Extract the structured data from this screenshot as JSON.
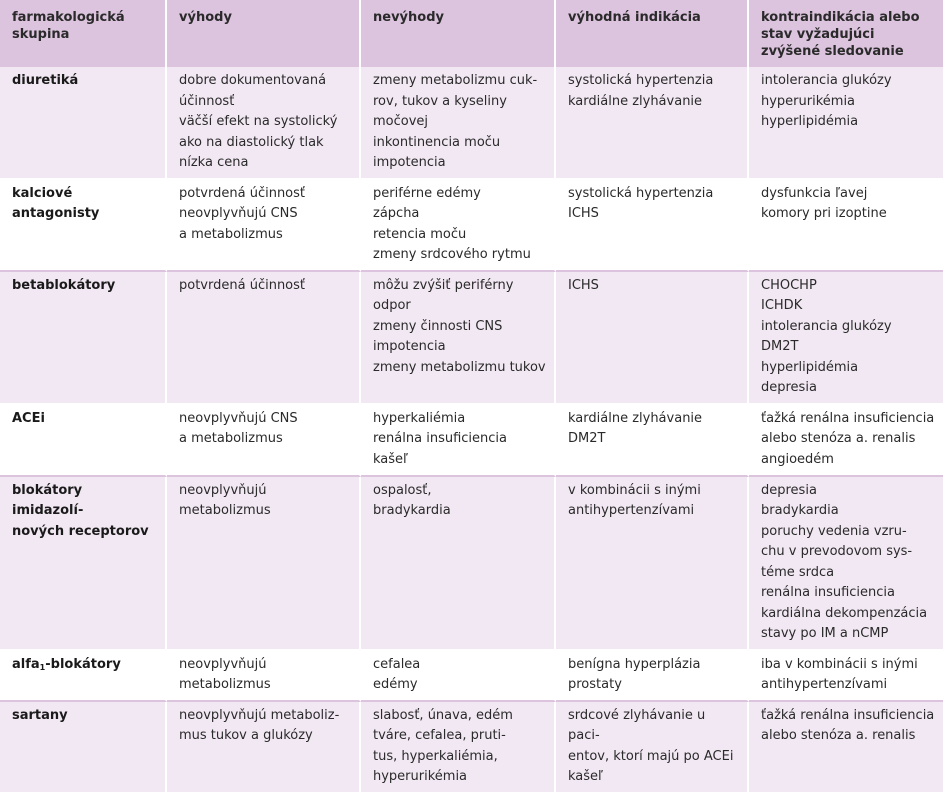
{
  "headers": [
    "farmakologická skupina",
    "výhody",
    "nevýhody",
    "výhodná indikácia",
    "kontraindikácia alebo stav vyžadujúci zvýšené sledovanie"
  ],
  "rows": [
    {
      "group": "diuretiká",
      "advantages": "dobre dokumentovaná\núčinnosť\nväčší efekt na systolický\nako na diastolický tlak\nnízka cena",
      "disadvantages": "zmeny metabolizmu cuk-\nrov, tukov a kyseliny\nmočovej\ninkontinencia moču\nimpotencia",
      "indication": "systolická hypertenzia\nkardiálne zlyhávanie",
      "contraindication": "intolerancia glukózy\nhyperurikémia\nhyperlipidémia"
    },
    {
      "group": "kalciové antagonisty",
      "advantages": "potvrdená účinnosť\nneovplyvňujú CNS\na metabolizmus",
      "disadvantages": "periférne edémy\nzápcha\nretencia moču\nzmeny srdcového rytmu",
      "indication": "systolická hypertenzia\nICHS",
      "contraindication": "dysfunkcia ľavej\nkomory pri izoptine"
    },
    {
      "group": "betablokátory",
      "advantages": "potvrdená účinnosť",
      "disadvantages": "môžu zvýšiť periférny\nodpor\nzmeny činnosti CNS\nimpotencia\nzmeny metabolizmu tukov",
      "indication": "ICHS",
      "contraindication": "CHOCHP\nICHDK\nintolerancia glukózy\nDM2T\nhyperlipidémia\ndepresia"
    },
    {
      "group": "ACEi",
      "advantages": "neovplyvňujú CNS\na metabolizmus",
      "disadvantages": "hyperkaliémia\nrenálna insuficiencia\nkašeľ",
      "indication": "kardiálne zlyhávanie\nDM2T",
      "contraindication": "ťažká renálna insuficiencia\nalebo stenóza a. renalis\nangioedém"
    },
    {
      "group": "blokátory imidazolí-\nnových receptorov",
      "advantages": "neovplyvňujú\nmetabolizmus",
      "disadvantages": "ospalosť,\nbradykardia",
      "indication": "v kombinácii s inými\nantihypertenzívami",
      "contraindication": "depresia\nbradykardia\nporuchy vedenia vzru-\nchu v prevodovom sys-\ntéme srdca\nrenálna insuficiencia\nkardiálna dekompenzácia\nstavy po IM a nCMP"
    },
    {
      "group_prefix": "alfa",
      "group_sub": "1",
      "group_suffix": "-blokátory",
      "advantages": "neovplyvňujú\nmetabolizmus",
      "disadvantages": "cefalea\nedémy",
      "indication": "benígna hyperplázia\nprostaty",
      "contraindication": "iba v kombinácii s inými\nantihypertenzívami"
    },
    {
      "group": "sartany",
      "advantages": "neovplyvňujú metaboliz-\nmus tukov a glukózy",
      "disadvantages": "slabosť, únava, edém\ntváre, cefalea, pruti-\ntus, hyperkaliémia,\nhyperurikémia",
      "indication": "srdcové zlyhávanie u paci-\nentov, ktorí majú po ACEi\nkašeľ",
      "contraindication": "ťažká renálna insuficiencia\nalebo stenóza a. renalis"
    }
  ]
}
